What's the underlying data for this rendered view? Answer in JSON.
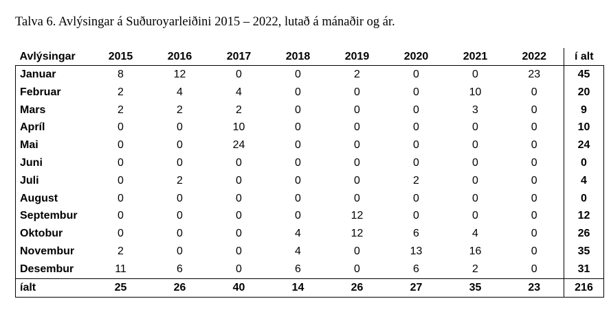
{
  "caption": "Talva 6. Avlýsingar á Suðuroyarleiðini 2015 – 2022, lutað á mánaðir og ár.",
  "table": {
    "headers": [
      "Avlýsingar",
      "2015",
      "2016",
      "2017",
      "2018",
      "2019",
      "2020",
      "2021",
      "2022",
      "í alt"
    ],
    "rows": [
      [
        "Januar",
        "8",
        "12",
        "0",
        "0",
        "2",
        "0",
        "0",
        "23",
        "45"
      ],
      [
        "Februar",
        "2",
        "4",
        "4",
        "0",
        "0",
        "0",
        "10",
        "0",
        "20"
      ],
      [
        "Mars",
        "2",
        "2",
        "2",
        "0",
        "0",
        "0",
        "3",
        "0",
        "9"
      ],
      [
        "Apríl",
        "0",
        "0",
        "10",
        "0",
        "0",
        "0",
        "0",
        "0",
        "10"
      ],
      [
        "Mai",
        "0",
        "0",
        "24",
        "0",
        "0",
        "0",
        "0",
        "0",
        "24"
      ],
      [
        "Juni",
        "0",
        "0",
        "0",
        "0",
        "0",
        "0",
        "0",
        "0",
        "0"
      ],
      [
        "Juli",
        "0",
        "2",
        "0",
        "0",
        "0",
        "2",
        "0",
        "0",
        "4"
      ],
      [
        "August",
        "0",
        "0",
        "0",
        "0",
        "0",
        "0",
        "0",
        "0",
        "0"
      ],
      [
        "Septembur",
        "0",
        "0",
        "0",
        "0",
        "12",
        "0",
        "0",
        "0",
        "12"
      ],
      [
        "Oktobur",
        "0",
        "0",
        "0",
        "4",
        "12",
        "6",
        "4",
        "0",
        "26"
      ],
      [
        "Novembur",
        "2",
        "0",
        "0",
        "4",
        "0",
        "13",
        "16",
        "0",
        "35"
      ],
      [
        "Desembur",
        "11",
        "6",
        "0",
        "6",
        "0",
        "6",
        "2",
        "0",
        "31"
      ]
    ],
    "footer": [
      "íalt",
      "25",
      "26",
      "40",
      "14",
      "26",
      "27",
      "35",
      "23",
      "216"
    ]
  }
}
